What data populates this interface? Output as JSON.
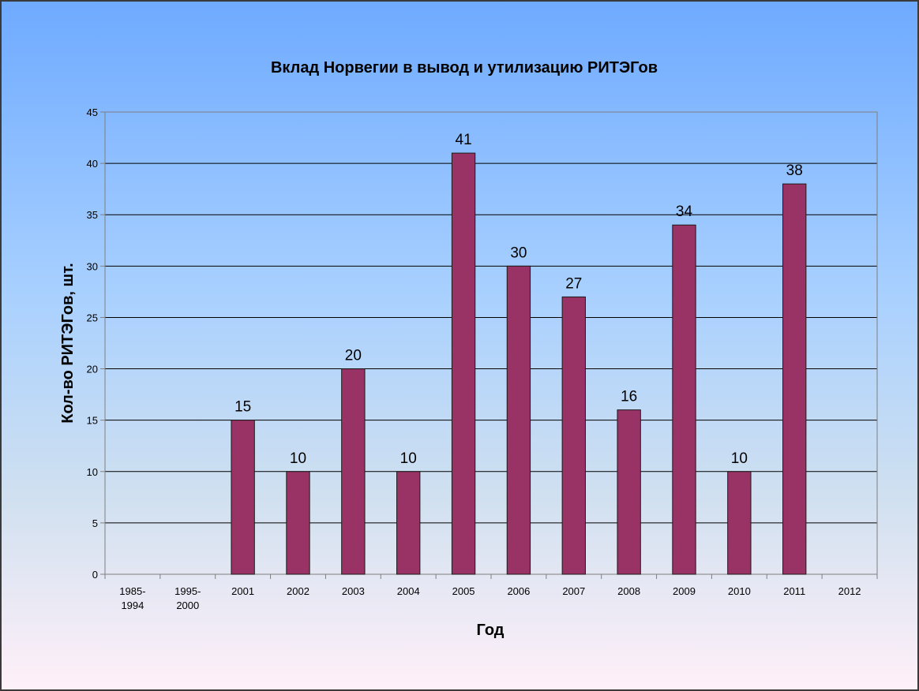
{
  "chart_data": {
    "type": "bar",
    "title": "Вклад Норвегии в вывод и утилизацию РИТЭГов",
    "xlabel": "Год",
    "ylabel": "Кол-во РИТЭГов, шт.",
    "categories": [
      "1985-1994",
      "1995-2000",
      "2001",
      "2002",
      "2003",
      "2004",
      "2005",
      "2006",
      "2007",
      "2008",
      "2009",
      "2010",
      "2011",
      "2012"
    ],
    "values": [
      null,
      null,
      15,
      10,
      20,
      10,
      41,
      30,
      27,
      16,
      34,
      10,
      38,
      null
    ],
    "ylim": [
      0,
      45
    ],
    "yticks": [
      0,
      5,
      10,
      15,
      20,
      25,
      30,
      35,
      40,
      45
    ],
    "grid": true,
    "legend": "none",
    "data_labels": true,
    "colors": {
      "bar": "#993366",
      "bar_stroke": "#1a1a1a",
      "gridline": "#000000",
      "axis": "#7f7f7f"
    }
  }
}
